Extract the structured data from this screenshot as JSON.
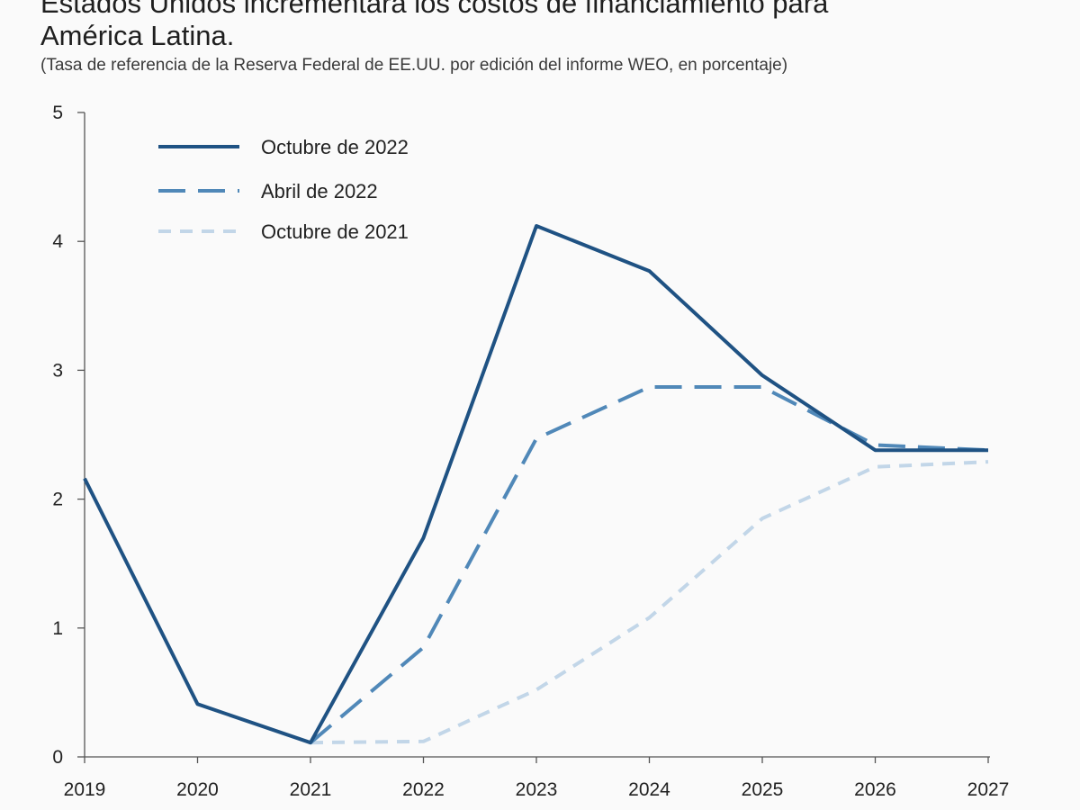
{
  "chart_data": {
    "type": "line",
    "title_line1": "Estados Unidos incrementará los costos de financiamiento para",
    "title_line2": "América Latina.",
    "subtitle": "(Tasa de referencia de la Reserva Federal de EE.UU. por edición del informe WEO, en porcentaje)",
    "xlabel": "",
    "ylabel": "",
    "x": [
      "2019",
      "2020",
      "2021",
      "2022",
      "2023",
      "2024",
      "2025",
      "2026",
      "2027"
    ],
    "ylim": [
      0,
      5
    ],
    "yticks": [
      "0",
      "1",
      "2",
      "3",
      "4",
      "5"
    ],
    "grid": false,
    "legend_position": "top-left",
    "series": [
      {
        "name": "Octubre de 2022",
        "color": "#1f5283",
        "style": "solid",
        "values": [
          2.16,
          0.41,
          0.11,
          1.7,
          4.12,
          3.77,
          2.96,
          2.38,
          2.38
        ]
      },
      {
        "name": "Abril de 2022",
        "color": "#5088b8",
        "style": "dashed",
        "values": [
          null,
          null,
          0.11,
          0.85,
          2.47,
          2.87,
          2.87,
          2.42,
          2.38
        ]
      },
      {
        "name": "Octubre de 2021",
        "color": "#c2d6e8",
        "style": "dashed-short",
        "values": [
          null,
          null,
          0.11,
          0.12,
          0.52,
          1.08,
          1.85,
          2.25,
          2.29
        ]
      }
    ]
  }
}
